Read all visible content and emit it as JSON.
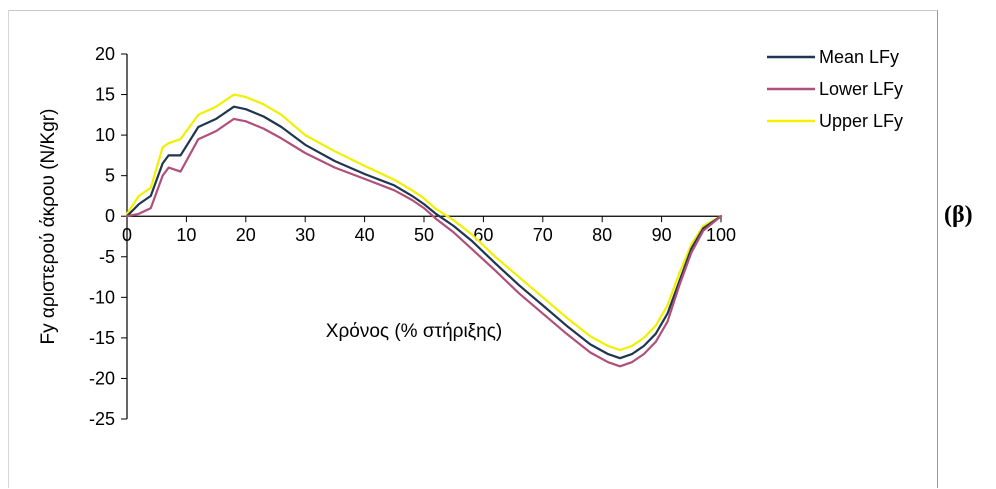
{
  "chart_data": {
    "type": "line",
    "title": "",
    "xlabel": "Χρόνος (% στήριξης)",
    "ylabel": "Fy αριστερού άκρου (N/Kgr)",
    "xlim": [
      0,
      100
    ],
    "ylim": [
      -25,
      20
    ],
    "x_ticks": [
      0,
      10,
      20,
      30,
      40,
      50,
      60,
      70,
      80,
      90,
      100
    ],
    "y_ticks": [
      20,
      15,
      10,
      5,
      0,
      -5,
      -10,
      -15,
      -20,
      -25
    ],
    "grid": false,
    "legend_position": "top-right",
    "x": [
      0,
      2,
      4,
      6,
      7,
      9,
      12,
      15,
      18,
      20,
      23,
      26,
      30,
      35,
      40,
      45,
      48,
      50,
      52,
      55,
      58,
      62,
      66,
      70,
      74,
      78,
      81,
      83,
      85,
      87,
      89,
      91,
      93,
      95,
      97,
      100
    ],
    "series": [
      {
        "name": "Mean LFy",
        "color": "#1f3550",
        "values": [
          0,
          1.5,
          2.5,
          6.5,
          7.5,
          7.5,
          11,
          12,
          13.5,
          13.2,
          12.3,
          11,
          8.8,
          6.8,
          5.2,
          3.8,
          2.5,
          1.5,
          0.3,
          -1.2,
          -3,
          -5.8,
          -8.5,
          -11,
          -13.5,
          -15.8,
          -17,
          -17.5,
          -17,
          -16,
          -14.5,
          -12,
          -8,
          -4,
          -1.5,
          0
        ]
      },
      {
        "name": "Lower LFy",
        "color": "#b0507a",
        "values": [
          0,
          0.3,
          1,
          5,
          6,
          5.5,
          9.5,
          10.5,
          12,
          11.7,
          10.8,
          9.6,
          7.8,
          6,
          4.6,
          3.2,
          2,
          1,
          -0.3,
          -2,
          -4,
          -6.7,
          -9.5,
          -12,
          -14.5,
          -16.8,
          -18,
          -18.5,
          -18,
          -17,
          -15.5,
          -13,
          -8.5,
          -4.5,
          -1.8,
          0
        ]
      },
      {
        "name": "Upper LFy",
        "color": "#f0f000",
        "values": [
          0.3,
          2.5,
          3.5,
          8.5,
          9,
          9.5,
          12.5,
          13.5,
          15,
          14.7,
          13.8,
          12.5,
          10,
          8,
          6.2,
          4.5,
          3.2,
          2.2,
          0.9,
          -0.5,
          -2.2,
          -5,
          -7.5,
          -10,
          -12.5,
          -14.8,
          -16,
          -16.5,
          -16,
          -15,
          -13.5,
          -11,
          -7,
          -3.5,
          -1.2,
          0
        ]
      }
    ]
  },
  "panel_label": "(β)"
}
